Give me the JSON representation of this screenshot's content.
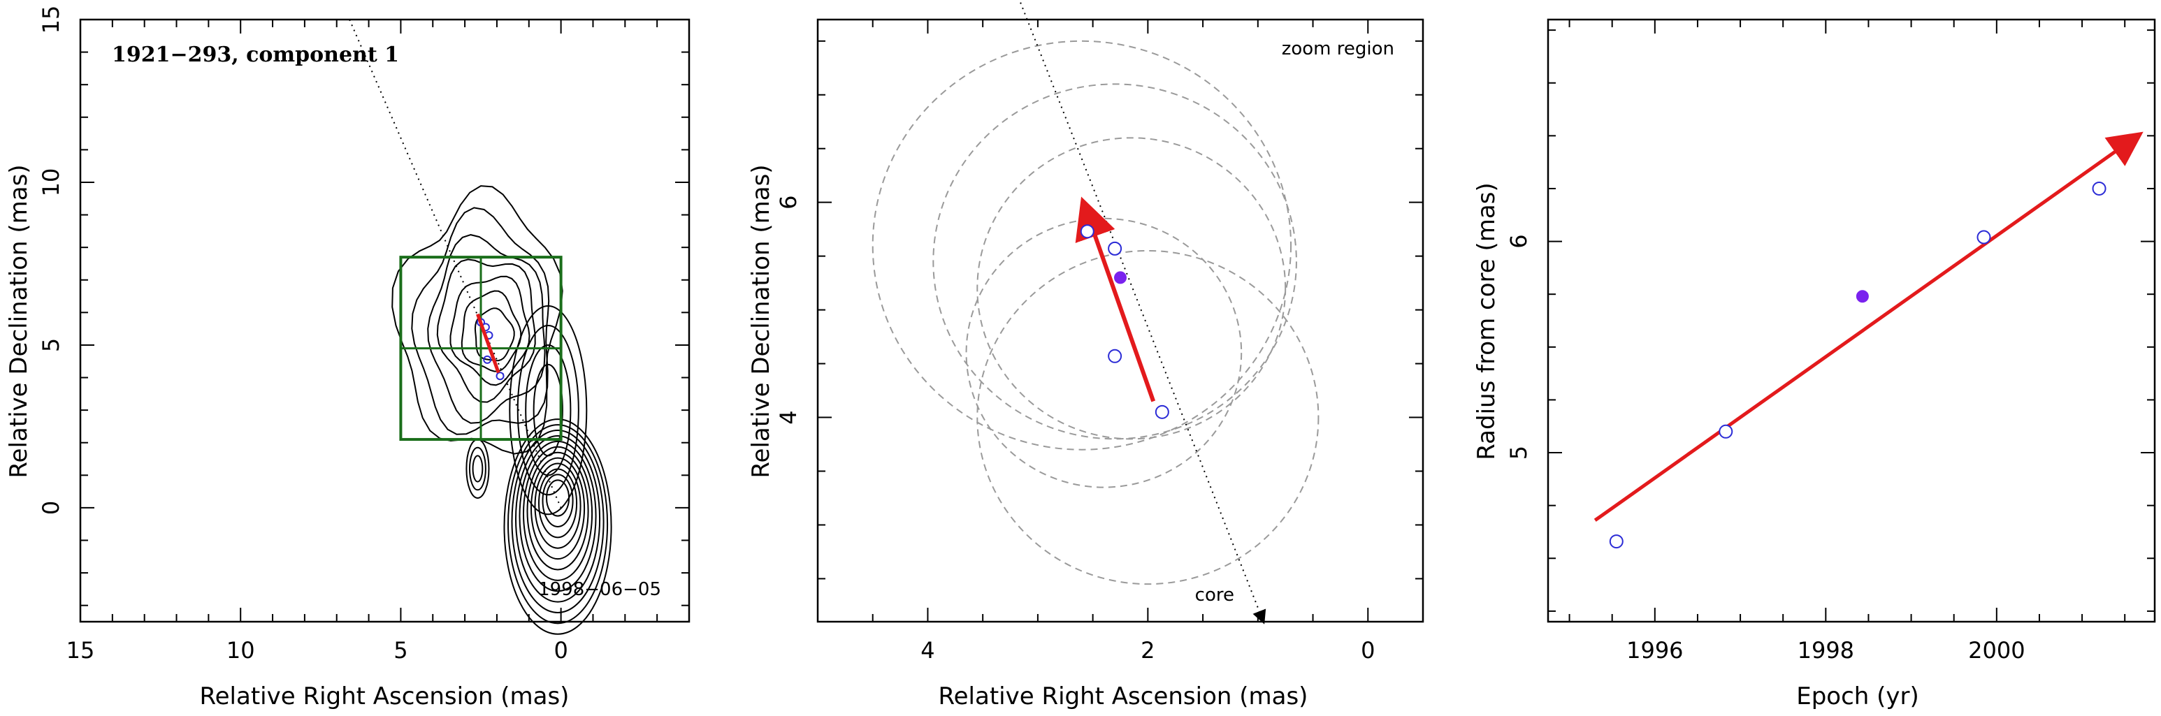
{
  "chart_data": [
    {
      "type": "scatter",
      "panel": "image",
      "annotation": "1921−293, component 1",
      "date_label": "1998−06−05",
      "xlabel": "Relative Right Ascension (mas)",
      "ylabel": "Relative Declination (mas)",
      "xlim": [
        15,
        -4
      ],
      "ylim": [
        -3.5,
        15
      ],
      "x_ticks": [
        "15",
        "10",
        "5",
        "0"
      ],
      "y_ticks": [
        "0",
        "5",
        "10",
        "15"
      ],
      "zoom_box": {
        "x": [
          5,
          0
        ],
        "y": [
          2.1,
          7.7
        ]
      },
      "points": [
        {
          "x": 2.5,
          "y": 5.7
        },
        {
          "x": 2.35,
          "y": 5.55
        },
        {
          "x": 2.25,
          "y": 5.3
        },
        {
          "x": 2.3,
          "y": 4.55
        },
        {
          "x": 1.9,
          "y": 4.05
        }
      ],
      "vector": {
        "x0": 1.95,
        "y0": 4.15,
        "x1": 2.6,
        "y1": 5.95
      },
      "pa_line": {
        "x0": 6.6,
        "y0": 15,
        "x1": 0,
        "y1": 0
      },
      "colors": {
        "contour": "#000000",
        "box": "#1a6e1a",
        "vector": "#e31a1c",
        "points": "#2b2bd6"
      }
    },
    {
      "type": "scatter",
      "panel": "zoom",
      "annotation": "zoom region",
      "core_label": "core",
      "xlabel": "Relative Right Ascension (mas)",
      "ylabel": "Relative Declination (mas)",
      "xlim": [
        5,
        -0.5
      ],
      "ylim": [
        2.1,
        7.7
      ],
      "x_ticks": [
        "4",
        "2",
        "0"
      ],
      "y_ticks": [
        "4",
        "6"
      ],
      "points": [
        {
          "x": 2.55,
          "y": 5.73,
          "filled": false
        },
        {
          "x": 2.3,
          "y": 5.57,
          "filled": false
        },
        {
          "x": 2.25,
          "y": 5.3,
          "filled": true
        },
        {
          "x": 2.3,
          "y": 4.57,
          "filled": false
        },
        {
          "x": 1.87,
          "y": 4.05,
          "filled": false
        }
      ],
      "error_rings": [
        {
          "x": 2.6,
          "y": 5.6,
          "r": 1.9
        },
        {
          "x": 2.3,
          "y": 5.45,
          "r": 1.65
        },
        {
          "x": 2.15,
          "y": 5.2,
          "r": 1.4
        },
        {
          "x": 2.4,
          "y": 4.6,
          "r": 1.25
        },
        {
          "x": 2.0,
          "y": 4.0,
          "r": 1.55
        }
      ],
      "vector": {
        "x0": 1.95,
        "y0": 4.15,
        "x1": 2.58,
        "y1": 5.98
      },
      "pa_line": {
        "x0": 3.25,
        "y0": 8.1,
        "x1": 0.95,
        "y1": 2.1
      },
      "colors": {
        "ring": "#9a9a9a",
        "vector": "#e31a1c",
        "open_point": "#2b2bd6",
        "filled_point": "#7a22ee"
      }
    },
    {
      "type": "scatter",
      "panel": "radius_vs_epoch",
      "xlabel": "Epoch (yr)",
      "ylabel": "Radius from core (mas)",
      "xlim": [
        1994.75,
        2001.85
      ],
      "ylim": [
        4.2,
        7.05
      ],
      "x_ticks": [
        "1996",
        "1998",
        "2000"
      ],
      "y_ticks": [
        "5",
        "6"
      ],
      "points": [
        {
          "x": 1995.55,
          "y": 4.58,
          "filled": false
        },
        {
          "x": 1996.83,
          "y": 5.1,
          "filled": false
        },
        {
          "x": 1998.43,
          "y": 5.74,
          "filled": true
        },
        {
          "x": 1999.85,
          "y": 6.02,
          "filled": false
        },
        {
          "x": 2001.2,
          "y": 6.25,
          "filled": false
        }
      ],
      "fit": {
        "x0": 1995.3,
        "y0": 4.68,
        "x1": 2001.65,
        "y1": 6.5
      },
      "colors": {
        "fit": "#e31a1c",
        "open_point": "#2b2bd6",
        "filled_point": "#7a22ee"
      }
    }
  ]
}
